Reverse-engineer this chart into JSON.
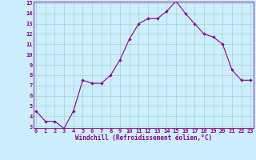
{
  "x": [
    0,
    1,
    2,
    3,
    4,
    5,
    6,
    7,
    8,
    9,
    10,
    11,
    12,
    13,
    14,
    15,
    16,
    17,
    18,
    19,
    20,
    21,
    22,
    23
  ],
  "y": [
    4.5,
    3.5,
    3.5,
    2.8,
    4.5,
    7.5,
    7.2,
    7.2,
    8.0,
    9.5,
    11.5,
    13.0,
    13.5,
    13.5,
    14.2,
    15.2,
    14.0,
    13.0,
    12.0,
    11.7,
    11.0,
    8.5,
    7.5,
    7.5
  ],
  "line_color": "#880088",
  "marker": "D",
  "marker_size": 1.8,
  "bg_color": "#cceeff",
  "grid_color": "#99ccbb",
  "xlabel": "Windchill (Refroidissement éolien,°C)",
  "xlabel_color": "#880088",
  "tick_color": "#880088",
  "ylim_min": 3,
  "ylim_max": 15,
  "xlim_min": 0,
  "xlim_max": 23,
  "yticks": [
    3,
    4,
    5,
    6,
    7,
    8,
    9,
    10,
    11,
    12,
    13,
    14,
    15
  ],
  "xticks": [
    0,
    1,
    2,
    3,
    4,
    5,
    6,
    7,
    8,
    9,
    10,
    11,
    12,
    13,
    14,
    15,
    16,
    17,
    18,
    19,
    20,
    21,
    22,
    23
  ],
  "xtick_labels": [
    "0",
    "1",
    "2",
    "3",
    "4",
    "5",
    "6",
    "7",
    "8",
    "9",
    "10",
    "11",
    "12",
    "13",
    "14",
    "15",
    "16",
    "17",
    "18",
    "19",
    "20",
    "21",
    "22",
    "23"
  ],
  "ytick_labels": [
    "3",
    "4",
    "5",
    "6",
    "7",
    "8",
    "9",
    "10",
    "11",
    "12",
    "13",
    "14",
    "15"
  ],
  "line_width": 0.8,
  "tick_fontsize": 5.0,
  "xlabel_fontsize": 5.5,
  "spine_color": "#880088"
}
